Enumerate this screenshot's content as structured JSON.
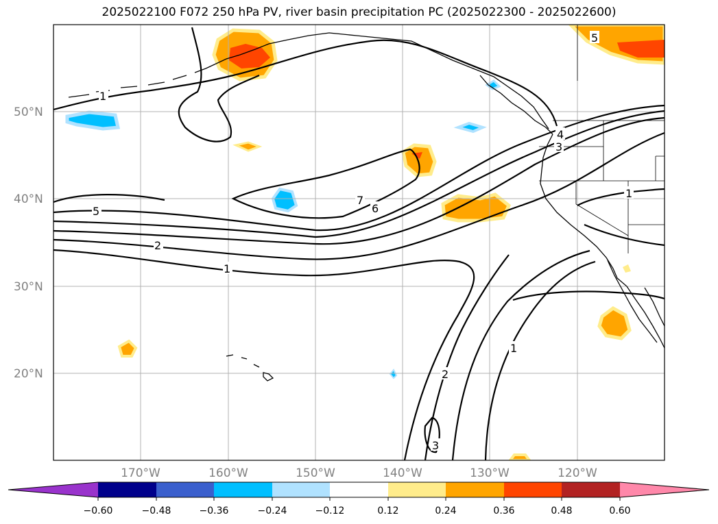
{
  "title": "2025022100 F072 250 hPa PV, river basin precipitation PC (2025022300 - 2025022600)",
  "map": {
    "lon_range": [
      -180,
      -110
    ],
    "lat_range": [
      10,
      60
    ],
    "lat_ticks": [
      "50°N",
      "40°N",
      "30°N",
      "20°N"
    ],
    "lon_ticks": [
      "170°W",
      "160°W",
      "150°W",
      "140°W",
      "130°W",
      "120°W"
    ],
    "grid": true
  },
  "pv_contour_labels": [
    "1",
    "5",
    "5",
    "2",
    "1",
    "7",
    "6",
    "4",
    "3",
    "1",
    "2",
    "1",
    "3"
  ],
  "colorbar": {
    "ticks": [
      "−0.60",
      "−0.48",
      "−0.36",
      "−0.24",
      "−0.12",
      "0.12",
      "0.24",
      "0.36",
      "0.48",
      "0.60"
    ],
    "colors": [
      "#9933cc",
      "#00008b",
      "#3a5fcd",
      "#00bfff",
      "#b0e2ff",
      "#ffffff",
      "#ffec8b",
      "#ffa500",
      "#ff4500",
      "#b22222",
      "#ff88aa"
    ],
    "extend": "both"
  }
}
